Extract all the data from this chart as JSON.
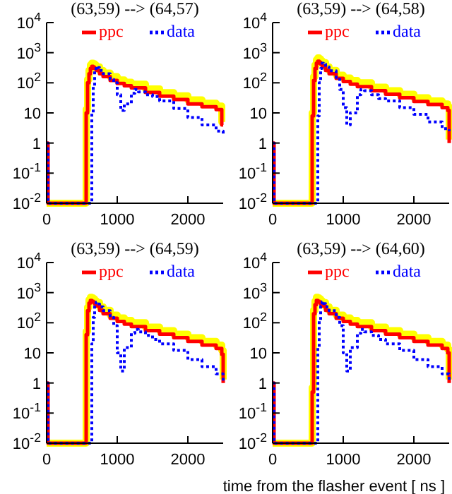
{
  "chart_data": [
    {
      "type": "step",
      "title": "(63,59) --> (64,57)",
      "log": "y",
      "legend": "top",
      "grid": false,
      "xlim": [
        0,
        2500
      ],
      "xticks": [
        0,
        1000,
        2000
      ],
      "ylim": [
        0.01,
        10000
      ],
      "yticks": [
        {
          "value": 10000,
          "label": "10$^{4}$"
        },
        {
          "value": 1000,
          "label": "10$^{3}$"
        },
        {
          "value": 100,
          "label": "10$^{2}$"
        },
        {
          "value": 10,
          "label": "10"
        },
        {
          "value": 1,
          "label": "1"
        },
        {
          "value": 0.1,
          "label": "10$^{-1}$"
        },
        {
          "value": 0.01,
          "label": "10$^{-2}$"
        }
      ],
      "x": [
        0,
        20,
        560,
        580,
        600,
        620,
        640,
        660,
        680,
        700,
        750,
        800,
        900,
        1000,
        1100,
        1200,
        1400,
        1600,
        1800,
        2000,
        2200,
        2400,
        2480,
        2500
      ],
      "series": [
        {
          "color": "#ffff00",
          "values": [
            0.01,
            0.01,
            13,
            130,
            260,
            390,
            450,
            430,
            390,
            340,
            260,
            210,
            160,
            125,
            105,
            90,
            63,
            47,
            37,
            27,
            21,
            17,
            5,
            5
          ]
        },
        {
          "name": "ppc",
          "color": "#ff0000",
          "line_style": "solid",
          "values": [
            1,
            0.01,
            10,
            100,
            200,
            300,
            350,
            330,
            300,
            260,
            200,
            160,
            120,
            95,
            80,
            68,
            48,
            36,
            28,
            20,
            16,
            13,
            4,
            4
          ]
        },
        {
          "name": "data",
          "color": "#0000ff",
          "line_style": "dotted",
          "x": [
            0,
            20,
            620,
            640,
            660,
            680,
            700,
            720,
            750,
            800,
            900,
            950,
            1000,
            1050,
            1100,
            1200,
            1250,
            1300,
            1400,
            1500,
            1600,
            1800,
            2000,
            2200,
            2400,
            2500
          ],
          "values": [
            1,
            0.01,
            0.01,
            10,
            80,
            250,
            350,
            320,
            260,
            200,
            130,
            100,
            40,
            12,
            20,
            45,
            60,
            50,
            40,
            35,
            25,
            14,
            7,
            4,
            2.5,
            1.7
          ]
        }
      ]
    },
    {
      "type": "step",
      "title": "(63,59) --> (64,58)",
      "log": "y",
      "legend": "top",
      "grid": false,
      "xlim": [
        0,
        2500
      ],
      "xticks": [
        0,
        1000,
        2000
      ],
      "ylim": [
        0.01,
        10000
      ],
      "yticks": [
        {
          "value": 10000,
          "label": "10$^{4}$"
        },
        {
          "value": 1000,
          "label": "10$^{3}$"
        },
        {
          "value": 100,
          "label": "10$^{2}$"
        },
        {
          "value": 10,
          "label": "10"
        },
        {
          "value": 1,
          "label": "1"
        },
        {
          "value": 0.1,
          "label": "10$^{-1}$"
        },
        {
          "value": 0.01,
          "label": "10$^{-2}$"
        }
      ],
      "x": [
        0,
        20,
        560,
        580,
        600,
        620,
        640,
        660,
        680,
        700,
        750,
        800,
        900,
        1000,
        1100,
        1200,
        1400,
        1600,
        1800,
        2000,
        2200,
        2400,
        2480,
        2500
      ],
      "series": [
        {
          "color": "#ffff00",
          "values": [
            0.01,
            0.01,
            10,
            160,
            390,
            580,
            670,
            620,
            550,
            470,
            340,
            260,
            180,
            145,
            120,
            100,
            72,
            55,
            42,
            32,
            25,
            20,
            16,
            1.3
          ]
        },
        {
          "name": "ppc",
          "color": "#ff0000",
          "line_style": "solid",
          "values": [
            1,
            0.01,
            8,
            120,
            300,
            450,
            520,
            480,
            420,
            360,
            260,
            200,
            140,
            110,
            90,
            75,
            55,
            42,
            32,
            24,
            19,
            15,
            12,
            1
          ]
        },
        {
          "name": "data",
          "color": "#0000ff",
          "line_style": "dotted",
          "x": [
            0,
            20,
            620,
            640,
            660,
            680,
            700,
            720,
            750,
            800,
            900,
            950,
            1000,
            1050,
            1100,
            1200,
            1250,
            1300,
            1400,
            1500,
            1600,
            1800,
            2000,
            2200,
            2400,
            2500
          ],
          "values": [
            1,
            0.01,
            0.01,
            8,
            100,
            300,
            450,
            420,
            340,
            250,
            150,
            60,
            15,
            4,
            10,
            40,
            60,
            55,
            40,
            30,
            25,
            15,
            9,
            5,
            3,
            2.5
          ]
        }
      ]
    },
    {
      "type": "step",
      "title": "(63,59) --> (64,59)",
      "log": "y",
      "legend": "top",
      "grid": false,
      "xlim": [
        0,
        2500
      ],
      "xticks": [
        0,
        1000,
        2000
      ],
      "ylim": [
        0.01,
        10000
      ],
      "yticks": [
        {
          "value": 10000,
          "label": "10$^{4}$"
        },
        {
          "value": 1000,
          "label": "10$^{3}$"
        },
        {
          "value": 100,
          "label": "10$^{2}$"
        },
        {
          "value": 10,
          "label": "10"
        },
        {
          "value": 1,
          "label": "1"
        },
        {
          "value": 0.1,
          "label": "10$^{-1}$"
        },
        {
          "value": 0.01,
          "label": "10$^{-2}$"
        }
      ],
      "x": [
        0,
        20,
        560,
        580,
        600,
        620,
        640,
        660,
        680,
        700,
        750,
        800,
        900,
        1000,
        1100,
        1200,
        1400,
        1600,
        1800,
        2000,
        2200,
        2400,
        2480,
        2500
      ],
      "series": [
        {
          "color": "#ffff00",
          "values": [
            0.01,
            0.01,
            52,
            330,
            580,
            700,
            670,
            620,
            550,
            470,
            340,
            260,
            180,
            145,
            120,
            100,
            72,
            55,
            42,
            32,
            24,
            18,
            12,
            1.3
          ]
        },
        {
          "name": "ppc",
          "color": "#ff0000",
          "line_style": "solid",
          "values": [
            1,
            0.01,
            40,
            250,
            450,
            550,
            520,
            480,
            420,
            360,
            260,
            200,
            140,
            110,
            90,
            75,
            55,
            42,
            32,
            24,
            18,
            14,
            9,
            1
          ]
        },
        {
          "name": "data",
          "color": "#0000ff",
          "line_style": "dotted",
          "x": [
            0,
            20,
            620,
            640,
            660,
            680,
            700,
            720,
            750,
            800,
            900,
            950,
            1000,
            1050,
            1100,
            1200,
            1250,
            1300,
            1400,
            1500,
            1600,
            1800,
            2000,
            2200,
            2400,
            2500
          ],
          "values": [
            1,
            0.01,
            0.01,
            20,
            150,
            400,
            480,
            420,
            340,
            250,
            150,
            80,
            10,
            2.5,
            15,
            45,
            60,
            50,
            38,
            28,
            20,
            12,
            6,
            3.5,
            2,
            1.2
          ]
        }
      ]
    },
    {
      "type": "step",
      "title": "(63,59) --> (64,60)",
      "xlabel": "time from the flasher event [ ns ]",
      "log": "y",
      "legend": "top",
      "grid": false,
      "xlim": [
        0,
        2500
      ],
      "xticks": [
        0,
        1000,
        2000
      ],
      "ylim": [
        0.01,
        10000
      ],
      "yticks": [
        {
          "value": 10000,
          "label": "10$^{4}$"
        },
        {
          "value": 1000,
          "label": "10$^{3}$"
        },
        {
          "value": 100,
          "label": "10$^{2}$"
        },
        {
          "value": 10,
          "label": "10"
        },
        {
          "value": 1,
          "label": "1"
        },
        {
          "value": 0.1,
          "label": "10$^{-1}$"
        },
        {
          "value": 0.01,
          "label": "10$^{-2}$"
        }
      ],
      "x": [
        0,
        20,
        560,
        580,
        600,
        620,
        640,
        660,
        680,
        700,
        750,
        800,
        900,
        1000,
        1100,
        1200,
        1400,
        1600,
        1800,
        2000,
        2200,
        2400,
        2480,
        2500
      ],
      "series": [
        {
          "color": "#ffff00",
          "values": [
            0.01,
            0.01,
            0.7,
            260,
            520,
            700,
            670,
            620,
            550,
            470,
            340,
            260,
            180,
            145,
            120,
            100,
            72,
            55,
            42,
            32,
            24,
            18,
            13,
            1.3
          ]
        },
        {
          "name": "ppc",
          "color": "#ff0000",
          "line_style": "solid",
          "values": [
            1,
            0.01,
            0.5,
            200,
            400,
            550,
            520,
            480,
            420,
            360,
            260,
            200,
            140,
            110,
            90,
            75,
            55,
            42,
            32,
            24,
            18,
            14,
            10,
            1
          ]
        },
        {
          "name": "data",
          "color": "#0000ff",
          "line_style": "dotted",
          "x": [
            0,
            20,
            620,
            640,
            660,
            680,
            700,
            720,
            750,
            800,
            900,
            950,
            1000,
            1050,
            1100,
            1200,
            1250,
            1300,
            1400,
            1500,
            1600,
            1800,
            2000,
            2200,
            2400,
            2500
          ],
          "values": [
            1,
            0.01,
            0.01,
            15,
            120,
            350,
            500,
            430,
            340,
            250,
            150,
            80,
            10,
            2.5,
            15,
            45,
            60,
            50,
            38,
            28,
            20,
            12,
            6,
            3.5,
            2,
            1.2
          ]
        }
      ]
    }
  ]
}
